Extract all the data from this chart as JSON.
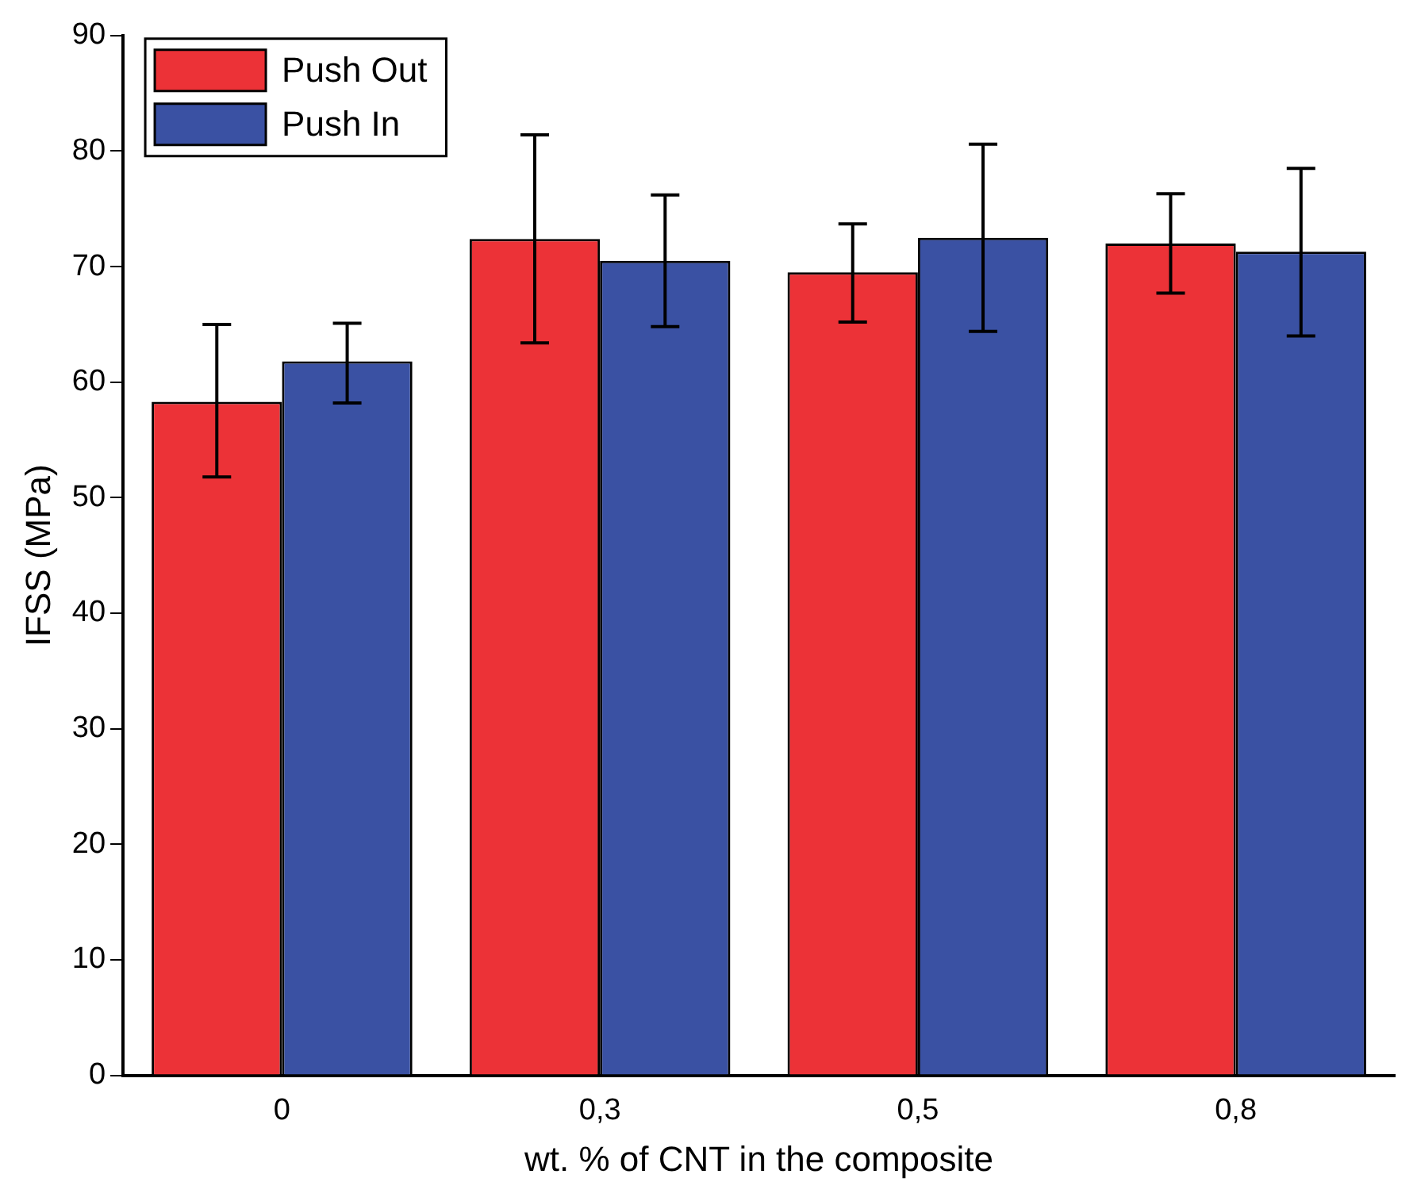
{
  "chart_data": {
    "type": "bar",
    "xlabel": "wt. % of CNT in the composite",
    "ylabel": "IFSS (MPa)",
    "categories": [
      "0",
      "0,3",
      "0,5",
      "0,8"
    ],
    "series": [
      {
        "name": "Push Out",
        "color": "#ec3237",
        "values": [
          58.3,
          72.4,
          69.5,
          72.0
        ],
        "errors": [
          [
            51.8,
            65.0
          ],
          [
            63.4,
            81.4
          ],
          [
            65.2,
            73.7
          ],
          [
            67.7,
            76.3
          ]
        ]
      },
      {
        "name": "Push In",
        "color": "#3a51a3",
        "values": [
          61.8,
          70.5,
          72.5,
          71.3
        ],
        "errors": [
          [
            58.2,
            65.1
          ],
          [
            64.8,
            76.2
          ],
          [
            64.4,
            80.6
          ],
          [
            64.0,
            78.5
          ]
        ]
      }
    ],
    "ylim": [
      0,
      90
    ],
    "yticks": [
      0,
      10,
      20,
      30,
      40,
      50,
      60,
      70,
      80,
      90
    ],
    "grid": false,
    "legend": "top left"
  }
}
